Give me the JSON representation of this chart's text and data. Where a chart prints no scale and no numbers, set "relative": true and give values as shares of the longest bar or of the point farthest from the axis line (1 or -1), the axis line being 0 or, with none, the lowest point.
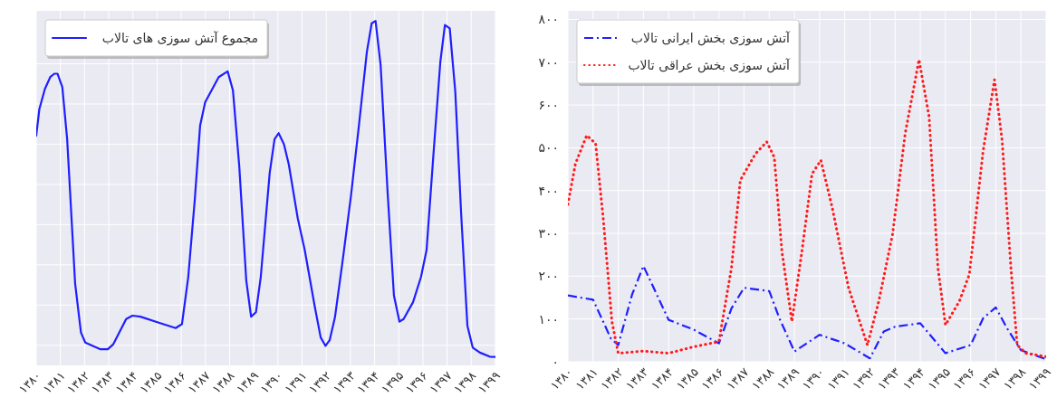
{
  "chart_data": [
    {
      "type": "line",
      "relative": true,
      "xlim": [
        1380,
        1399
      ],
      "xticks": [
        {
          "value": 1380,
          "label": "۱۳۸۰"
        },
        {
          "value": 1381,
          "label": "۱۳۸۱"
        },
        {
          "value": 1382,
          "label": "۱۳۸۲"
        },
        {
          "value": 1383,
          "label": "۱۳۸۳"
        },
        {
          "value": 1384,
          "label": "۱۳۸۴"
        },
        {
          "value": 1385,
          "label": "۱۳۸۵"
        },
        {
          "value": 1386,
          "label": "۱۳۸۶"
        },
        {
          "value": 1387,
          "label": "۱۳۸۷"
        },
        {
          "value": 1388,
          "label": "۱۳۸۸"
        },
        {
          "value": 1389,
          "label": "۱۳۸۹"
        },
        {
          "value": 1390,
          "label": "۱۳۹۰"
        },
        {
          "value": 1391,
          "label": "۱۳۹۱"
        },
        {
          "value": 1392,
          "label": "۱۳۹۲"
        },
        {
          "value": 1393,
          "label": "۱۳۹۳"
        },
        {
          "value": 1394,
          "label": "۱۳۹۴"
        },
        {
          "value": 1395,
          "label": "۱۳۹۵"
        },
        {
          "value": 1396,
          "label": "۱۳۹۶"
        },
        {
          "value": 1397,
          "label": "۱۳۹۷"
        },
        {
          "value": 1398,
          "label": "۱۳۹۸"
        },
        {
          "value": 1399,
          "label": "۱۳۹۹"
        }
      ],
      "grid": true,
      "legend": "top left",
      "series": [
        {
          "name": "مجموع آتش سوزی های تالاب",
          "color": "#1f1fff",
          "line_style": "solid",
          "x": [
            1380,
            1380.13,
            1380.36,
            1380.58,
            1380.75,
            1380.88,
            1381.08,
            1381.28,
            1381.61,
            1381.85,
            1382.03,
            1382.66,
            1382.96,
            1383.19,
            1383.72,
            1383.98,
            1384.31,
            1385.04,
            1385.77,
            1386.03,
            1386.29,
            1386.56,
            1386.78,
            1386.99,
            1387.55,
            1387.92,
            1388.14,
            1388.4,
            1388.69,
            1388.89,
            1389.09,
            1389.29,
            1389.66,
            1389.86,
            1390.03,
            1390.25,
            1390.45,
            1390.82,
            1391.11,
            1391.53,
            1391.77,
            1391.97,
            1392.14,
            1392.36,
            1392.69,
            1393.02,
            1393.35,
            1393.68,
            1393.88,
            1394.04,
            1394.25,
            1394.54,
            1394.8,
            1395.03,
            1395.2,
            1395.59,
            1395.92,
            1396.15,
            1396.45,
            1396.72,
            1396.91,
            1397.11,
            1397.34,
            1397.58,
            1397.84,
            1398.06,
            1398.36,
            1398.76,
            1399
          ],
          "values": [
            0.658,
            0.738,
            0.798,
            0.833,
            0.843,
            0.843,
            0.803,
            0.648,
            0.218,
            0.073,
            0.043,
            0.023,
            0.023,
            0.038,
            0.113,
            0.123,
            0.12,
            0.103,
            0.086,
            0.098,
            0.238,
            0.468,
            0.688,
            0.758,
            0.833,
            0.85,
            0.793,
            0.568,
            0.228,
            0.12,
            0.133,
            0.238,
            0.548,
            0.648,
            0.666,
            0.633,
            0.573,
            0.413,
            0.318,
            0.148,
            0.058,
            0.033,
            0.05,
            0.118,
            0.293,
            0.478,
            0.688,
            0.908,
            0.993,
            1,
            0.868,
            0.488,
            0.183,
            0.105,
            0.113,
            0.163,
            0.238,
            0.318,
            0.618,
            0.878,
            0.988,
            0.978,
            0.788,
            0.428,
            0.093,
            0.028,
            0.013,
            0.001,
            0
          ]
        }
      ]
    },
    {
      "type": "line",
      "xlim": [
        1380,
        1399
      ],
      "xticks": [
        {
          "value": 1380,
          "label": "۱۳۸۰"
        },
        {
          "value": 1381,
          "label": "۱۳۸۱"
        },
        {
          "value": 1382,
          "label": "۱۳۸۲"
        },
        {
          "value": 1383,
          "label": "۱۳۸۳"
        },
        {
          "value": 1384,
          "label": "۱۳۸۴"
        },
        {
          "value": 1385,
          "label": "۱۳۸۵"
        },
        {
          "value": 1386,
          "label": "۱۳۸۶"
        },
        {
          "value": 1387,
          "label": "۱۳۸۷"
        },
        {
          "value": 1388,
          "label": "۱۳۸۸"
        },
        {
          "value": 1389,
          "label": "۱۳۸۹"
        },
        {
          "value": 1390,
          "label": "۱۳۹۰"
        },
        {
          "value": 1391,
          "label": "۱۳۹۱"
        },
        {
          "value": 1392,
          "label": "۱۳۹۲"
        },
        {
          "value": 1393,
          "label": "۱۳۹۳"
        },
        {
          "value": 1394,
          "label": "۱۳۹۴"
        },
        {
          "value": 1395,
          "label": "۱۳۹۵"
        },
        {
          "value": 1396,
          "label": "۱۳۹۶"
        },
        {
          "value": 1397,
          "label": "۱۳۹۷"
        },
        {
          "value": 1398,
          "label": "۱۳۹۸"
        },
        {
          "value": 1399,
          "label": "۱۳۹۹"
        }
      ],
      "ylim": [
        0,
        820
      ],
      "yticks": [
        {
          "value": 0,
          "label": "۰"
        },
        {
          "value": 100,
          "label": "۱۰۰"
        },
        {
          "value": 200,
          "label": "۲۰۰"
        },
        {
          "value": 300,
          "label": "۳۰۰"
        },
        {
          "value": 400,
          "label": "۴۰۰"
        },
        {
          "value": 500,
          "label": "۵۰۰"
        },
        {
          "value": 600,
          "label": "۶۰۰"
        },
        {
          "value": 700,
          "label": "۷۰۰"
        },
        {
          "value": 800,
          "label": "۸۰۰"
        }
      ],
      "grid": true,
      "legend": "top left",
      "series": [
        {
          "name": "آتش سوزی بخش ایرانی تالاب",
          "color": "#1f1fff",
          "line_style": "dashdot",
          "x": [
            1380,
            1381,
            1381.4,
            1381.7,
            1382,
            1382.55,
            1383,
            1383.35,
            1384,
            1385,
            1386,
            1386.5,
            1387,
            1388,
            1388.4,
            1389,
            1390,
            1391,
            1392,
            1392.55,
            1393,
            1394,
            1395,
            1396,
            1396.5,
            1397,
            1397.45,
            1398,
            1399
          ],
          "values": [
            155,
            145,
            94,
            55,
            39,
            157,
            224,
            180,
            98,
            75,
            43,
            125,
            173,
            165,
            102,
            24,
            63,
            43,
            8,
            71,
            82,
            90,
            20,
            39,
            102,
            127,
            78,
            27,
            6
          ]
        },
        {
          "name": "آتش سوزی بخش عراقی تالاب",
          "color": "#ff1a1a",
          "line_style": "dotted",
          "x": [
            1380,
            1380.3,
            1380.75,
            1381.1,
            1381.4,
            1381.75,
            1382,
            1383,
            1384,
            1385,
            1386,
            1386.5,
            1386.85,
            1387.45,
            1387.9,
            1388.2,
            1388.5,
            1388.9,
            1389.3,
            1389.7,
            1390.05,
            1390.5,
            1391.15,
            1391.9,
            1392.35,
            1392.9,
            1393.4,
            1393.95,
            1394.35,
            1394.7,
            1395,
            1395.55,
            1395.95,
            1396.5,
            1396.95,
            1397.25,
            1397.6,
            1397.85,
            1398.2,
            1399
          ],
          "values": [
            368,
            463,
            529,
            510,
            337,
            94,
            20,
            25,
            20,
            35,
            47,
            220,
            424,
            486,
            514,
            478,
            259,
            94,
            259,
            439,
            471,
            361,
            173,
            39,
            141,
            298,
            533,
            706,
            573,
            220,
            86,
            141,
            204,
            494,
            659,
            518,
            220,
            39,
            20,
            12
          ]
        }
      ]
    }
  ]
}
